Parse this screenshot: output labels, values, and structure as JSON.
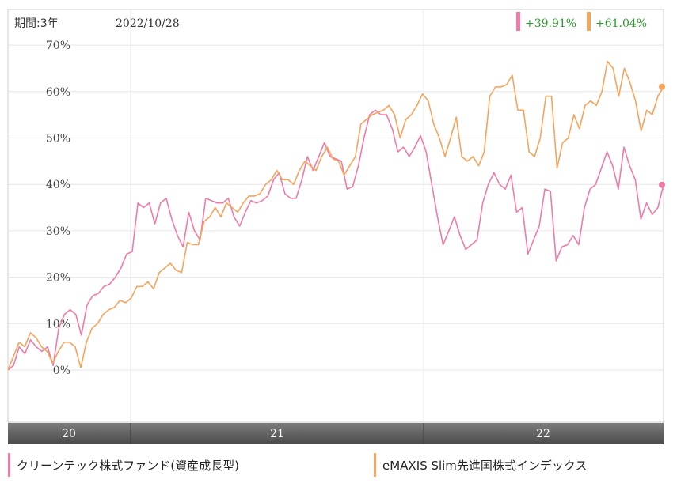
{
  "header": {
    "period_label": "期間:3年",
    "date": "2022/10/28"
  },
  "colors": {
    "series1": "#f07aa8",
    "series2": "#f5a45c",
    "gain": "#2a9a2a"
  },
  "chart_data": {
    "type": "line",
    "yticks": [
      "70%",
      "60%",
      "50%",
      "40%",
      "30%",
      "20%",
      "10%",
      "0%"
    ],
    "ylim": [
      -12,
      72
    ],
    "xlabels": [
      "20",
      "21",
      "22"
    ],
    "series": [
      {
        "name": "クリーンテック株式ファンド(資産成長型)",
        "change_label": "+39.91%",
        "values": [
          0,
          1,
          5,
          3.5,
          6.5,
          5,
          4,
          5,
          1,
          9,
          12,
          13,
          12,
          7.5,
          14,
          16,
          16.5,
          18,
          18.5,
          20,
          22,
          25,
          25.5,
          36,
          35,
          36,
          31.5,
          36,
          37,
          32.5,
          29,
          26.5,
          34,
          30,
          28,
          37,
          36.5,
          36,
          36,
          37,
          33,
          31,
          34,
          36.5,
          36,
          36.5,
          37.5,
          41,
          42.5,
          38,
          37,
          37,
          41,
          46,
          43,
          46,
          49,
          46,
          45.5,
          45,
          39,
          39.5,
          44,
          50,
          55,
          56,
          55,
          55,
          52,
          47,
          48,
          46,
          48,
          50.5,
          47,
          40,
          33,
          27,
          30,
          33,
          29,
          26,
          27,
          28,
          36,
          40,
          42.5,
          40,
          39,
          42,
          34,
          35,
          25,
          28,
          31,
          39,
          38.5,
          23.5,
          26.5,
          27,
          29,
          27,
          35,
          39,
          40,
          43.5,
          47,
          44,
          39,
          48,
          44,
          41,
          32.5,
          36,
          33.5,
          35,
          39.91
        ]
      },
      {
        "name": "eMAXIS Slim先進国株式インデックス",
        "change_label": "+61.04%",
        "values": [
          0,
          3,
          6,
          5,
          8,
          7,
          5,
          4,
          1.5,
          4,
          6,
          6,
          5,
          0.5,
          6,
          9,
          10,
          12,
          13,
          13.5,
          15,
          14.5,
          15.5,
          18,
          18,
          19,
          17.5,
          21,
          22,
          23,
          21.5,
          21,
          27.5,
          27,
          27,
          32,
          33,
          35,
          33,
          36,
          35,
          34,
          36,
          37.5,
          37.5,
          38,
          40,
          41,
          43,
          41,
          41,
          40,
          43,
          45,
          44,
          43,
          46,
          48,
          45.5,
          45,
          42,
          44,
          46,
          53,
          54,
          55,
          55.5,
          56,
          57,
          55,
          50,
          54,
          55,
          57,
          59.5,
          58,
          53,
          50,
          46,
          50,
          54.5,
          46,
          45,
          46,
          44,
          47,
          59,
          61,
          61,
          61.5,
          63.5,
          56,
          56,
          47,
          46,
          50,
          59,
          59,
          43.5,
          49,
          50,
          55,
          52,
          57,
          58,
          57,
          60,
          66.5,
          65,
          59,
          65,
          62,
          58,
          51.5,
          56,
          55,
          59,
          61.04
        ]
      }
    ]
  }
}
